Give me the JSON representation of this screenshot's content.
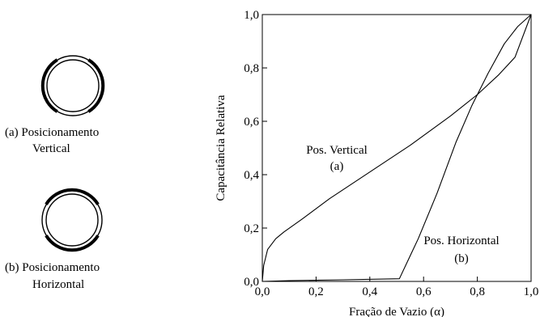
{
  "schematics": [
    {
      "caption_line1": "(a) Posicionamento",
      "caption_line2": "Vertical"
    },
    {
      "caption_line1": "(b) Posicionamento",
      "caption_line2": "Horizontal"
    }
  ],
  "chart_data": {
    "type": "line",
    "xlabel": "Fração de Vazio (α)",
    "ylabel": "Capacitância Relativa",
    "xlim": [
      0,
      1
    ],
    "ylim": [
      0,
      1
    ],
    "xticks": [
      "0,0",
      "0,2",
      "0,4",
      "0,6",
      "0,8",
      "1,0"
    ],
    "yticks": [
      "0,0",
      "0,2",
      "0,4",
      "0,6",
      "0,8",
      "1,0"
    ],
    "grid": false,
    "series": [
      {
        "label_line1": "Pos. Vertical",
        "label_line2": "(a)",
        "x": [
          0,
          0.005,
          0.02,
          0.05,
          0.08,
          0.15,
          0.25,
          0.4,
          0.55,
          0.7,
          0.8,
          0.88,
          0.94,
          1.0
        ],
        "y": [
          0,
          0.06,
          0.12,
          0.16,
          0.185,
          0.235,
          0.31,
          0.41,
          0.51,
          0.62,
          0.7,
          0.775,
          0.84,
          1.0
        ]
      },
      {
        "label_line1": "Pos. Horizontal",
        "label_line2": "(b)",
        "x": [
          0,
          0.1,
          0.3,
          0.51,
          0.58,
          0.65,
          0.72,
          0.78,
          0.84,
          0.9,
          0.95,
          1.0
        ],
        "y": [
          0,
          0.003,
          0.006,
          0.01,
          0.16,
          0.33,
          0.52,
          0.66,
          0.78,
          0.89,
          0.955,
          1.0
        ]
      }
    ]
  }
}
